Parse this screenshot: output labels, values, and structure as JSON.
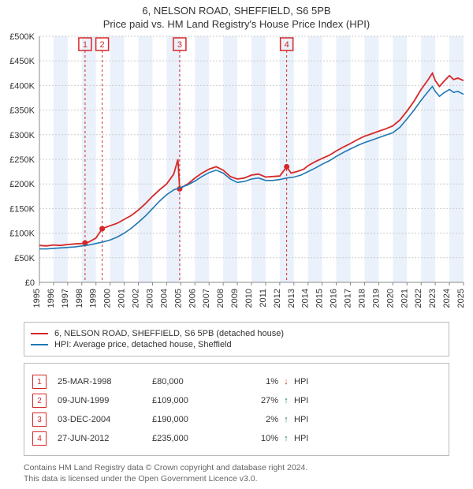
{
  "title_line1": "6, NELSON ROAD, SHEFFIELD, S6 5PB",
  "title_line2": "Price paid vs. HM Land Registry's House Price Index (HPI)",
  "chart": {
    "type": "line",
    "background_color": "#ffffff",
    "band_color": "#eaf1fa",
    "grid_color": "#cccccc",
    "axis_color": "#888888",
    "text_color": "#333333",
    "x_start_year": 1995,
    "x_end_year": 2025,
    "x_tick_years": [
      1995,
      1996,
      1997,
      1998,
      1999,
      2000,
      2001,
      2002,
      2003,
      2004,
      2005,
      2006,
      2007,
      2008,
      2009,
      2010,
      2011,
      2012,
      2013,
      2014,
      2015,
      2016,
      2017,
      2018,
      2019,
      2020,
      2021,
      2022,
      2023,
      2024,
      2025
    ],
    "ylim": [
      0,
      500000
    ],
    "y_ticks": [
      0,
      50000,
      100000,
      150000,
      200000,
      250000,
      300000,
      350000,
      400000,
      450000,
      500000
    ],
    "y_tick_labels": [
      "£0",
      "£50K",
      "£100K",
      "£150K",
      "£200K",
      "£250K",
      "£300K",
      "£350K",
      "£400K",
      "£450K",
      "£500K"
    ],
    "axis_fontsize": 11,
    "series": [
      {
        "name": "6, NELSON ROAD, SHEFFIELD, S6 5PB (detached house)",
        "color": "#d62728",
        "width": 1.8,
        "points": [
          [
            1995.0,
            75000
          ],
          [
            1995.5,
            74000
          ],
          [
            1996.0,
            76000
          ],
          [
            1996.5,
            75000
          ],
          [
            1997.0,
            77000
          ],
          [
            1997.5,
            78000
          ],
          [
            1998.0,
            79000
          ],
          [
            1998.23,
            80000
          ],
          [
            1998.5,
            82000
          ],
          [
            1999.0,
            90000
          ],
          [
            1999.44,
            109000
          ],
          [
            1999.7,
            112000
          ],
          [
            2000.0,
            115000
          ],
          [
            2000.5,
            120000
          ],
          [
            2001.0,
            128000
          ],
          [
            2001.5,
            136000
          ],
          [
            2002.0,
            147000
          ],
          [
            2002.5,
            160000
          ],
          [
            2003.0,
            175000
          ],
          [
            2003.5,
            188000
          ],
          [
            2004.0,
            200000
          ],
          [
            2004.5,
            220000
          ],
          [
            2004.8,
            250000
          ],
          [
            2004.92,
            190000
          ],
          [
            2005.2,
            195000
          ],
          [
            2005.5,
            200000
          ],
          [
            2006.0,
            212000
          ],
          [
            2006.5,
            222000
          ],
          [
            2007.0,
            230000
          ],
          [
            2007.5,
            235000
          ],
          [
            2008.0,
            228000
          ],
          [
            2008.5,
            215000
          ],
          [
            2009.0,
            210000
          ],
          [
            2009.5,
            212000
          ],
          [
            2010.0,
            218000
          ],
          [
            2010.5,
            220000
          ],
          [
            2011.0,
            214000
          ],
          [
            2011.5,
            215000
          ],
          [
            2012.0,
            216000
          ],
          [
            2012.49,
            235000
          ],
          [
            2012.8,
            222000
          ],
          [
            2013.2,
            225000
          ],
          [
            2013.7,
            230000
          ],
          [
            2014.0,
            237000
          ],
          [
            2014.5,
            245000
          ],
          [
            2015.0,
            252000
          ],
          [
            2015.5,
            258000
          ],
          [
            2016.0,
            267000
          ],
          [
            2016.5,
            275000
          ],
          [
            2017.0,
            282000
          ],
          [
            2017.5,
            290000
          ],
          [
            2018.0,
            297000
          ],
          [
            2018.5,
            302000
          ],
          [
            2019.0,
            307000
          ],
          [
            2019.5,
            312000
          ],
          [
            2020.0,
            318000
          ],
          [
            2020.5,
            330000
          ],
          [
            2021.0,
            348000
          ],
          [
            2021.5,
            368000
          ],
          [
            2022.0,
            392000
          ],
          [
            2022.5,
            412000
          ],
          [
            2022.8,
            425000
          ],
          [
            2023.0,
            410000
          ],
          [
            2023.3,
            398000
          ],
          [
            2023.6,
            408000
          ],
          [
            2024.0,
            420000
          ],
          [
            2024.3,
            412000
          ],
          [
            2024.6,
            415000
          ],
          [
            2025.0,
            410000
          ]
        ],
        "sale_dots": [
          [
            1998.23,
            80000
          ],
          [
            1999.44,
            109000
          ],
          [
            2004.92,
            190000
          ],
          [
            2012.49,
            235000
          ]
        ]
      },
      {
        "name": "HPI: Average price, detached house, Sheffield",
        "color": "#1f77b4",
        "width": 1.6,
        "points": [
          [
            1995.0,
            68000
          ],
          [
            1995.5,
            68000
          ],
          [
            1996.0,
            69000
          ],
          [
            1996.5,
            70000
          ],
          [
            1997.0,
            71000
          ],
          [
            1997.5,
            72000
          ],
          [
            1998.0,
            74000
          ],
          [
            1998.5,
            76000
          ],
          [
            1999.0,
            79000
          ],
          [
            1999.5,
            82000
          ],
          [
            2000.0,
            86000
          ],
          [
            2000.5,
            92000
          ],
          [
            2001.0,
            100000
          ],
          [
            2001.5,
            110000
          ],
          [
            2002.0,
            122000
          ],
          [
            2002.5,
            135000
          ],
          [
            2003.0,
            150000
          ],
          [
            2003.5,
            165000
          ],
          [
            2004.0,
            178000
          ],
          [
            2004.5,
            188000
          ],
          [
            2005.0,
            193000
          ],
          [
            2005.5,
            198000
          ],
          [
            2006.0,
            206000
          ],
          [
            2006.5,
            215000
          ],
          [
            2007.0,
            223000
          ],
          [
            2007.5,
            228000
          ],
          [
            2008.0,
            222000
          ],
          [
            2008.5,
            210000
          ],
          [
            2009.0,
            203000
          ],
          [
            2009.5,
            205000
          ],
          [
            2010.0,
            210000
          ],
          [
            2010.5,
            212000
          ],
          [
            2011.0,
            207000
          ],
          [
            2011.5,
            207000
          ],
          [
            2012.0,
            209000
          ],
          [
            2012.5,
            212000
          ],
          [
            2013.0,
            214000
          ],
          [
            2013.5,
            218000
          ],
          [
            2014.0,
            225000
          ],
          [
            2014.5,
            232000
          ],
          [
            2015.0,
            240000
          ],
          [
            2015.5,
            247000
          ],
          [
            2016.0,
            256000
          ],
          [
            2016.5,
            264000
          ],
          [
            2017.0,
            271000
          ],
          [
            2017.5,
            278000
          ],
          [
            2018.0,
            284000
          ],
          [
            2018.5,
            289000
          ],
          [
            2019.0,
            294000
          ],
          [
            2019.5,
            299000
          ],
          [
            2020.0,
            304000
          ],
          [
            2020.5,
            315000
          ],
          [
            2021.0,
            332000
          ],
          [
            2021.5,
            350000
          ],
          [
            2022.0,
            370000
          ],
          [
            2022.5,
            388000
          ],
          [
            2022.8,
            398000
          ],
          [
            2023.0,
            388000
          ],
          [
            2023.3,
            378000
          ],
          [
            2023.6,
            385000
          ],
          [
            2024.0,
            392000
          ],
          [
            2024.3,
            386000
          ],
          [
            2024.6,
            388000
          ],
          [
            2025.0,
            382000
          ]
        ]
      }
    ],
    "sale_markers": [
      {
        "n": "1",
        "year": 1998.23,
        "narrow": true
      },
      {
        "n": "2",
        "year": 1999.44,
        "narrow": true
      },
      {
        "n": "3",
        "year": 2004.92,
        "narrow": false
      },
      {
        "n": "4",
        "year": 2012.49,
        "narrow": false
      }
    ]
  },
  "legend": {
    "items": [
      {
        "color": "#d62728",
        "label": "6, NELSON ROAD, SHEFFIELD, S6 5PB (detached house)"
      },
      {
        "color": "#1f77b4",
        "label": "HPI: Average price, detached house, Sheffield"
      }
    ]
  },
  "events": [
    {
      "n": "1",
      "date": "25-MAR-1998",
      "price": "£80,000",
      "pct": "1%",
      "dir": "down",
      "hpi": "HPI"
    },
    {
      "n": "2",
      "date": "09-JUN-1999",
      "price": "£109,000",
      "pct": "27%",
      "dir": "up",
      "hpi": "HPI"
    },
    {
      "n": "3",
      "date": "03-DEC-2004",
      "price": "£190,000",
      "pct": "2%",
      "dir": "up",
      "hpi": "HPI"
    },
    {
      "n": "4",
      "date": "27-JUN-2012",
      "price": "£235,000",
      "pct": "10%",
      "dir": "up",
      "hpi": "HPI"
    }
  ],
  "footnote_line1": "Contains HM Land Registry data © Crown copyright and database right 2024.",
  "footnote_line2": "This data is licensed under the Open Government Licence v3.0.",
  "colors": {
    "marker_red": "#d62728",
    "down_arrow": "#c0392b",
    "up_arrow": "#1e8449"
  }
}
